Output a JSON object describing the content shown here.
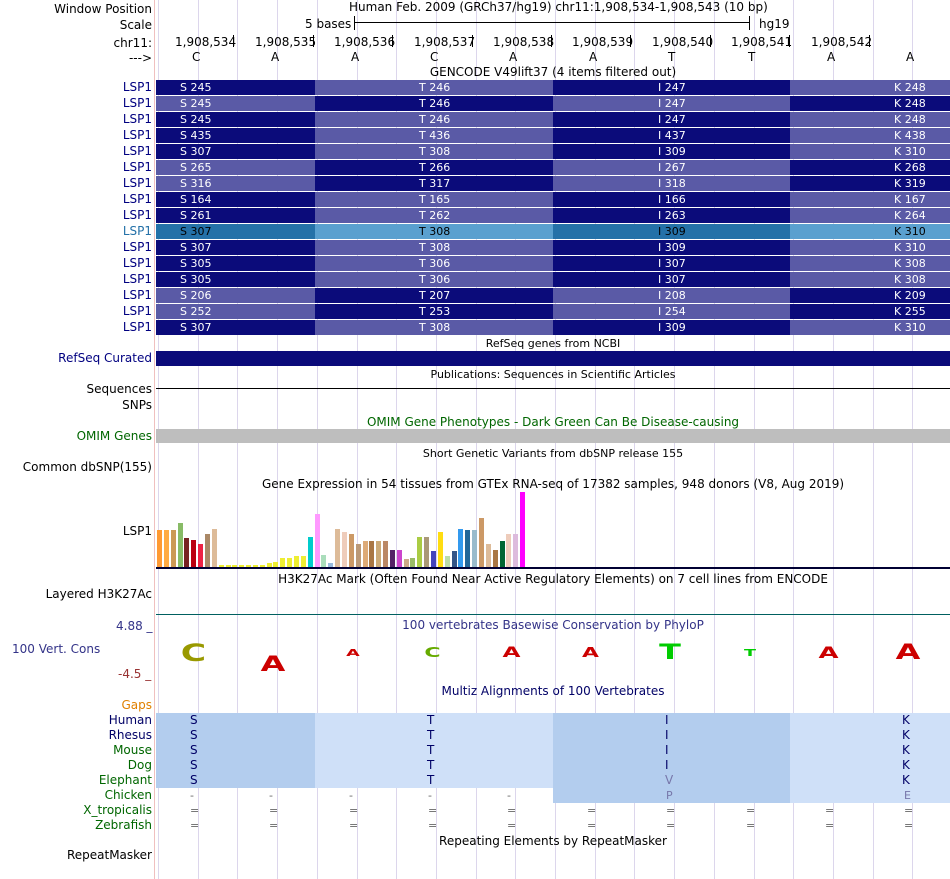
{
  "header": {
    "window_position_label": "Window Position",
    "scale_label": "Scale",
    "chrom_label": "chr11:",
    "arrow_label": "--->",
    "assembly_title": "Human Feb. 2009 (GRCh37/hg19)   chr11:1,908,534-1,908,543 (10 bp)",
    "scale_text": "5 bases",
    "scale_db": "hg19",
    "positions": [
      "1,908,534",
      "1,908,535",
      "1,908,536",
      "1,908,537",
      "1,908,538",
      "1,908,539",
      "1,908,540",
      "1,908,541",
      "1,908,542"
    ],
    "bases": [
      "C",
      "A",
      "A",
      "C",
      "A",
      "A",
      "T",
      "T",
      "A",
      "A"
    ]
  },
  "gencode": {
    "title": "GENCODE V49lift37 (4 items filtered out)",
    "gene_label": "LSP1",
    "rows": [
      {
        "s": "S 245",
        "t": "T 246",
        "i": "I 247",
        "k": "K 248",
        "shade": "dark"
      },
      {
        "s": "S 245",
        "t": "T 246",
        "i": "I 247",
        "k": "K 248",
        "shade": "light"
      },
      {
        "s": "S 245",
        "t": "T 246",
        "i": "I 247",
        "k": "K 248",
        "shade": "dark"
      },
      {
        "s": "S 435",
        "t": "T 436",
        "i": "I 437",
        "k": "K 438",
        "shade": "dark"
      },
      {
        "s": "S 307",
        "t": "T 308",
        "i": "I 309",
        "k": "K 310",
        "shade": "dark"
      },
      {
        "s": "S 265",
        "t": "T 266",
        "i": "I 267",
        "k": "K 268",
        "shade": "light"
      },
      {
        "s": "S 316",
        "t": "T 317",
        "i": "I 318",
        "k": "K 319",
        "shade": "light"
      },
      {
        "s": "S 164",
        "t": "T 165",
        "i": "I 166",
        "k": "K 167",
        "shade": "dark"
      },
      {
        "s": "S 261",
        "t": "T 262",
        "i": "I 263",
        "k": "K 264",
        "shade": "dark"
      },
      {
        "s": "S 307",
        "t": "T 308",
        "i": "I 309",
        "k": "K 310",
        "shade": "selected"
      },
      {
        "s": "S 307",
        "t": "T 308",
        "i": "I 309",
        "k": "K 310",
        "shade": "dark"
      },
      {
        "s": "S 305",
        "t": "T 306",
        "i": "I 307",
        "k": "K 308",
        "shade": "dark"
      },
      {
        "s": "S 305",
        "t": "T 306",
        "i": "I 307",
        "k": "K 308",
        "shade": "dark"
      },
      {
        "s": "S 206",
        "t": "T 207",
        "i": "I 208",
        "k": "K 209",
        "shade": "light"
      },
      {
        "s": "S 252",
        "t": "T 253",
        "i": "I 254",
        "k": "K 255",
        "shade": "light"
      },
      {
        "s": "S 307",
        "t": "T 308",
        "i": "I 309",
        "k": "K 310",
        "shade": "dark"
      }
    ]
  },
  "tracks": {
    "refseq_label": "RefSeq Curated",
    "refseq_title": "RefSeq genes from NCBI",
    "publications_title": "Publications: Sequences in Scientific Articles",
    "sequences_label": "Sequences",
    "snps_label": "SNPs",
    "omim_title": "OMIM Gene Phenotypes - Dark Green Can Be Disease-causing",
    "omim_label": "OMIM Genes",
    "dbsnp_title": "Short Genetic Variants from dbSNP release 155",
    "dbsnp_label": "Common dbSNP(155)",
    "gtex_title": "Gene Expression in 54 tissues from GTEx RNA-seq of 17382 samples, 948 donors (V8, Aug 2019)",
    "gtex_label": "LSP1",
    "h3k27_title": "H3K27Ac Mark (Often Found Near Active Regulatory Elements) on 7 cell lines from ENCODE",
    "h3k27_label": "Layered H3K27Ac",
    "phylop_title": "100 vertebrates Basewise Conservation by PhyloP",
    "phylop_label": "100 Vert. Cons",
    "phylop_max": "4.88 _",
    "phylop_min": "-4.5 _",
    "multiz_title": "Multiz Alignments of 100 Vertebrates",
    "gaps_label": "Gaps",
    "repeat_title": "Repeating Elements by RepeatMasker",
    "repeat_label": "RepeatMasker"
  },
  "gtex_expression": [
    {
      "color": "#ff9933",
      "value": 0.49
    },
    {
      "color": "#ffaa44",
      "value": 0.49
    },
    {
      "color": "#cc9955",
      "value": 0.49
    },
    {
      "color": "#88bb66",
      "value": 0.58
    },
    {
      "color": "#772222",
      "value": 0.38
    },
    {
      "color": "#bb0011",
      "value": 0.36
    },
    {
      "color": "#ee2244",
      "value": 0.3
    },
    {
      "color": "#aa8866",
      "value": 0.44
    },
    {
      "color": "#ddbb99",
      "value": 0.51
    },
    {
      "color": "#eeee33",
      "value": 0.03
    },
    {
      "color": "#eeee33",
      "value": 0.03
    },
    {
      "color": "#eeee33",
      "value": 0.02
    },
    {
      "color": "#eeee33",
      "value": 0.02
    },
    {
      "color": "#eeee33",
      "value": 0.03
    },
    {
      "color": "#eeee33",
      "value": 0.02
    },
    {
      "color": "#eeee33",
      "value": 0.03
    },
    {
      "color": "#eeee33",
      "value": 0.05
    },
    {
      "color": "#eeee33",
      "value": 0.07
    },
    {
      "color": "#eeee33",
      "value": 0.12
    },
    {
      "color": "#eeee33",
      "value": 0.12
    },
    {
      "color": "#eeee33",
      "value": 0.14
    },
    {
      "color": "#eeee33",
      "value": 0.14
    },
    {
      "color": "#00cccc",
      "value": 0.4
    },
    {
      "color": "#ff99ff",
      "value": 0.71
    },
    {
      "color": "#aaddbb",
      "value": 0.16
    },
    {
      "color": "#99bbdd",
      "value": 0.05
    },
    {
      "color": "#ddbb99",
      "value": 0.51
    },
    {
      "color": "#eeccbb",
      "value": 0.47
    },
    {
      "color": "#cc9966",
      "value": 0.44
    },
    {
      "color": "#bb9977",
      "value": 0.3
    },
    {
      "color": "#ddaa77",
      "value": 0.35
    },
    {
      "color": "#aa7744",
      "value": 0.35
    },
    {
      "color": "#ccaa77",
      "value": 0.35
    },
    {
      "color": "#bb8866",
      "value": 0.35
    },
    {
      "color": "#552266",
      "value": 0.23
    },
    {
      "color": "#cc44cc",
      "value": 0.23
    },
    {
      "color": "#ccaa88",
      "value": 0.1
    },
    {
      "color": "#99bb66",
      "value": 0.12
    },
    {
      "color": "#aacc44",
      "value": 0.4
    },
    {
      "color": "#aa9977",
      "value": 0.4
    },
    {
      "color": "#4444bb",
      "value": 0.21
    },
    {
      "color": "#ffdd11",
      "value": 0.47
    },
    {
      "color": "#bbddaa",
      "value": 0.14
    },
    {
      "color": "#335588",
      "value": 0.21
    },
    {
      "color": "#3399ee",
      "value": 0.51
    },
    {
      "color": "#226699",
      "value": 0.49
    },
    {
      "color": "#99bbcc",
      "value": 0.49
    },
    {
      "color": "#cc9966",
      "value": 0.65
    },
    {
      "color": "#ddbb99",
      "value": 0.3
    },
    {
      "color": "#aa7744",
      "value": 0.22
    },
    {
      "color": "#006633",
      "value": 0.35
    },
    {
      "color": "#eeccbb",
      "value": 0.44
    },
    {
      "color": "#ddbbdd",
      "value": 0.44
    },
    {
      "color": "#ff00ff",
      "value": 1.0
    }
  ],
  "conservation_logos": [
    {
      "letter": "C",
      "color": "#999900",
      "strength": 0.9,
      "dir": "up"
    },
    {
      "letter": "A",
      "color": "#cc0000",
      "strength": 0.7,
      "dir": "down"
    },
    {
      "letter": "A",
      "color": "#cc0000",
      "strength": 0.1,
      "dir": "up"
    },
    {
      "letter": "C",
      "color": "#66aa00",
      "strength": 0.25,
      "dir": "up"
    },
    {
      "letter": "A",
      "color": "#cc0000",
      "strength": 0.35,
      "dir": "up"
    },
    {
      "letter": "A",
      "color": "#cc0000",
      "strength": 0.3,
      "dir": "up"
    },
    {
      "letter": "T",
      "color": "#00cc00",
      "strength": 0.7,
      "dir": "up"
    },
    {
      "letter": "T",
      "color": "#00cc00",
      "strength": 0.1,
      "dir": "up"
    },
    {
      "letter": "A",
      "color": "#cc0000",
      "strength": 0.45,
      "dir": "up"
    },
    {
      "letter": "A",
      "color": "#cc0000",
      "strength": 0.7,
      "dir": "up"
    }
  ],
  "multiz": {
    "species": [
      {
        "name": "Human",
        "color": "#000066",
        "cells": [
          "S",
          "T",
          "I",
          "K"
        ],
        "kind": "aa"
      },
      {
        "name": "Rhesus",
        "color": "#000066",
        "cells": [
          "S",
          "T",
          "I",
          "K"
        ],
        "kind": "aa"
      },
      {
        "name": "Mouse",
        "color": "#006600",
        "cells": [
          "S",
          "T",
          "I",
          "K"
        ],
        "kind": "aa"
      },
      {
        "name": "Dog",
        "color": "#006600",
        "cells": [
          "S",
          "T",
          "I",
          "K"
        ],
        "kind": "aa"
      },
      {
        "name": "Elephant",
        "color": "#006600",
        "cells": [
          "S",
          "T",
          "V",
          "K"
        ],
        "kind": "aa_mut3"
      },
      {
        "name": "Chicken",
        "color": "#006600",
        "cells": [
          "-",
          "-",
          "-",
          "-",
          "-",
          "",
          "P",
          "",
          "",
          "E"
        ],
        "kind": "bases_chicken"
      },
      {
        "name": "X_tropicalis",
        "color": "#006600",
        "cells": [
          "=",
          "=",
          "=",
          "=",
          "=",
          "=",
          "=",
          "=",
          "=",
          "="
        ],
        "kind": "bases"
      },
      {
        "name": "Zebrafish",
        "color": "#006600",
        "cells": [
          "=",
          "=",
          "=",
          "=",
          "=",
          "=",
          "=",
          "=",
          "=",
          "="
        ],
        "kind": "bases"
      }
    ]
  },
  "colors": {
    "dark_blue": "#0b0b7a",
    "light_blue": "#5a5aa6",
    "selected_dark": "#2471a8",
    "selected_light": "#5aa0cf",
    "label_blue": "#000080",
    "omim_green": "#006600",
    "omim_gray": "#bebebe",
    "gaps_orange": "#e08000",
    "multiz_dark": "#b3cdee",
    "multiz_light": "#cfe0f8"
  }
}
